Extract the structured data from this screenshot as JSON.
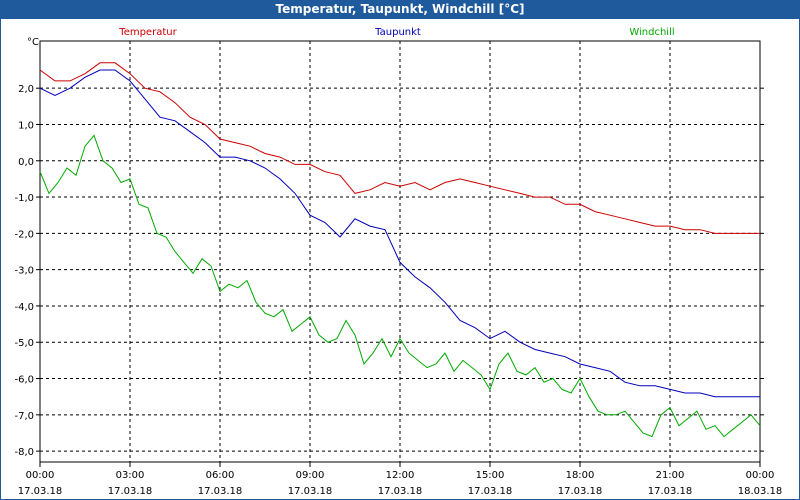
{
  "window": {
    "title": "Temperatur, Taupunkt, Windchill [°C]"
  },
  "chart_data": {
    "type": "line",
    "title": "Temperatur, Taupunkt, Windchill [°C]",
    "ylabel": "°C",
    "xlabel": "",
    "ylim": [
      -8.3,
      3.3
    ],
    "xlim": [
      0,
      24
    ],
    "grid": true,
    "y_ticks": [
      2.0,
      1.0,
      0.0,
      -1.0,
      -2.0,
      -3.0,
      -4.0,
      -5.0,
      -6.0,
      -7.0,
      -8.0
    ],
    "y_tick_labels": [
      "2,0",
      "1,0",
      "0,0",
      "-1,0",
      "-2,0",
      "-3,0",
      "-4,0",
      "-5,0",
      "-6,0",
      "-7,0",
      "-8,0"
    ],
    "x_ticks": [
      0,
      3,
      6,
      9,
      12,
      15,
      18,
      21,
      24
    ],
    "x_tick_times": [
      "00:00",
      "03:00",
      "06:00",
      "09:00",
      "12:00",
      "15:00",
      "18:00",
      "21:00",
      "00:00"
    ],
    "x_tick_dates": [
      "17.03.18",
      "17.03.18",
      "17.03.18",
      "17.03.18",
      "17.03.18",
      "17.03.18",
      "17.03.18",
      "17.03.18",
      "18.03.18"
    ],
    "series": [
      {
        "name": "Temperatur",
        "color": "#cc0000",
        "x": [
          0,
          0.5,
          1.0,
          1.5,
          2.0,
          2.5,
          3.0,
          3.5,
          4.0,
          4.5,
          5.0,
          5.5,
          6.0,
          6.5,
          7.0,
          7.5,
          8.0,
          8.5,
          9.0,
          9.5,
          10.0,
          10.5,
          11.0,
          11.5,
          12.0,
          12.5,
          13.0,
          13.5,
          14.0,
          14.5,
          15.0,
          15.5,
          16.0,
          16.5,
          17.0,
          17.5,
          18.0,
          18.5,
          19.0,
          19.5,
          20.0,
          20.5,
          21.0,
          21.5,
          22.0,
          22.5,
          23.0,
          23.5,
          24.0
        ],
        "values": [
          2.5,
          2.2,
          2.2,
          2.4,
          2.7,
          2.7,
          2.4,
          2.0,
          1.9,
          1.6,
          1.2,
          1.0,
          0.6,
          0.5,
          0.4,
          0.2,
          0.1,
          -0.1,
          -0.1,
          -0.3,
          -0.4,
          -0.9,
          -0.8,
          -0.6,
          -0.7,
          -0.6,
          -0.8,
          -0.6,
          -0.5,
          -0.6,
          -0.7,
          -0.8,
          -0.9,
          -1.0,
          -1.0,
          -1.2,
          -1.2,
          -1.4,
          -1.5,
          -1.6,
          -1.7,
          -1.8,
          -1.8,
          -1.9,
          -1.9,
          -2.0,
          -2.0,
          -2.0,
          -2.0
        ]
      },
      {
        "name": "Taupunkt",
        "color": "#0000bb",
        "x": [
          0,
          0.5,
          1.0,
          1.5,
          2.0,
          2.5,
          3.0,
          3.5,
          4.0,
          4.5,
          5.0,
          5.5,
          6.0,
          6.5,
          7.0,
          7.5,
          8.0,
          8.5,
          9.0,
          9.5,
          10.0,
          10.5,
          11.0,
          11.5,
          12.0,
          12.5,
          13.0,
          13.5,
          14.0,
          14.5,
          15.0,
          15.5,
          16.0,
          16.5,
          17.0,
          17.5,
          18.0,
          18.5,
          19.0,
          19.5,
          20.0,
          20.5,
          21.0,
          21.5,
          22.0,
          22.5,
          23.0,
          23.5,
          24.0
        ],
        "values": [
          2.0,
          1.8,
          2.0,
          2.3,
          2.5,
          2.5,
          2.2,
          1.7,
          1.2,
          1.1,
          0.8,
          0.5,
          0.1,
          0.1,
          0.0,
          -0.2,
          -0.5,
          -0.9,
          -1.5,
          -1.7,
          -2.1,
          -1.6,
          -1.8,
          -1.9,
          -2.8,
          -3.2,
          -3.5,
          -3.9,
          -4.4,
          -4.6,
          -4.9,
          -4.7,
          -5.0,
          -5.2,
          -5.3,
          -5.4,
          -5.6,
          -5.7,
          -5.8,
          -6.1,
          -6.2,
          -6.2,
          -6.3,
          -6.4,
          -6.4,
          -6.5,
          -6.5,
          -6.5,
          -6.5
        ]
      },
      {
        "name": "Windchill",
        "color": "#00aa00",
        "x": [
          0,
          0.3,
          0.6,
          0.9,
          1.2,
          1.5,
          1.8,
          2.1,
          2.4,
          2.7,
          3.0,
          3.3,
          3.6,
          3.9,
          4.2,
          4.5,
          4.8,
          5.1,
          5.4,
          5.7,
          6.0,
          6.3,
          6.6,
          6.9,
          7.2,
          7.5,
          7.8,
          8.1,
          8.4,
          8.7,
          9.0,
          9.3,
          9.6,
          9.9,
          10.2,
          10.5,
          10.8,
          11.1,
          11.4,
          11.7,
          12.0,
          12.3,
          12.6,
          12.9,
          13.2,
          13.5,
          13.8,
          14.1,
          14.4,
          14.7,
          15.0,
          15.3,
          15.6,
          15.9,
          16.2,
          16.5,
          16.8,
          17.1,
          17.4,
          17.7,
          18.0,
          18.3,
          18.6,
          18.9,
          19.2,
          19.5,
          19.8,
          20.1,
          20.4,
          20.7,
          21.0,
          21.3,
          21.6,
          21.9,
          22.2,
          22.5,
          22.8,
          23.1,
          23.4,
          23.7,
          24.0
        ],
        "values": [
          -0.3,
          -0.9,
          -0.6,
          -0.2,
          -0.4,
          0.4,
          0.7,
          0.0,
          -0.2,
          -0.6,
          -0.5,
          -1.2,
          -1.3,
          -2.0,
          -2.1,
          -2.5,
          -2.8,
          -3.1,
          -2.7,
          -2.9,
          -3.6,
          -3.4,
          -3.5,
          -3.3,
          -3.9,
          -4.2,
          -4.3,
          -4.1,
          -4.7,
          -4.5,
          -4.3,
          -4.8,
          -5.0,
          -4.9,
          -4.4,
          -4.8,
          -5.6,
          -5.3,
          -4.9,
          -5.4,
          -4.9,
          -5.3,
          -5.5,
          -5.7,
          -5.6,
          -5.3,
          -5.8,
          -5.5,
          -5.7,
          -5.9,
          -6.3,
          -5.6,
          -5.3,
          -5.8,
          -5.9,
          -5.7,
          -6.1,
          -6.0,
          -6.3,
          -6.4,
          -6.0,
          -6.5,
          -6.9,
          -7.0,
          -7.0,
          -6.9,
          -7.2,
          -7.5,
          -7.6,
          -7.0,
          -6.8,
          -7.3,
          -7.1,
          -6.9,
          -7.4,
          -7.3,
          -7.6,
          -7.4,
          -7.2,
          -7.0,
          -7.3
        ]
      }
    ]
  }
}
